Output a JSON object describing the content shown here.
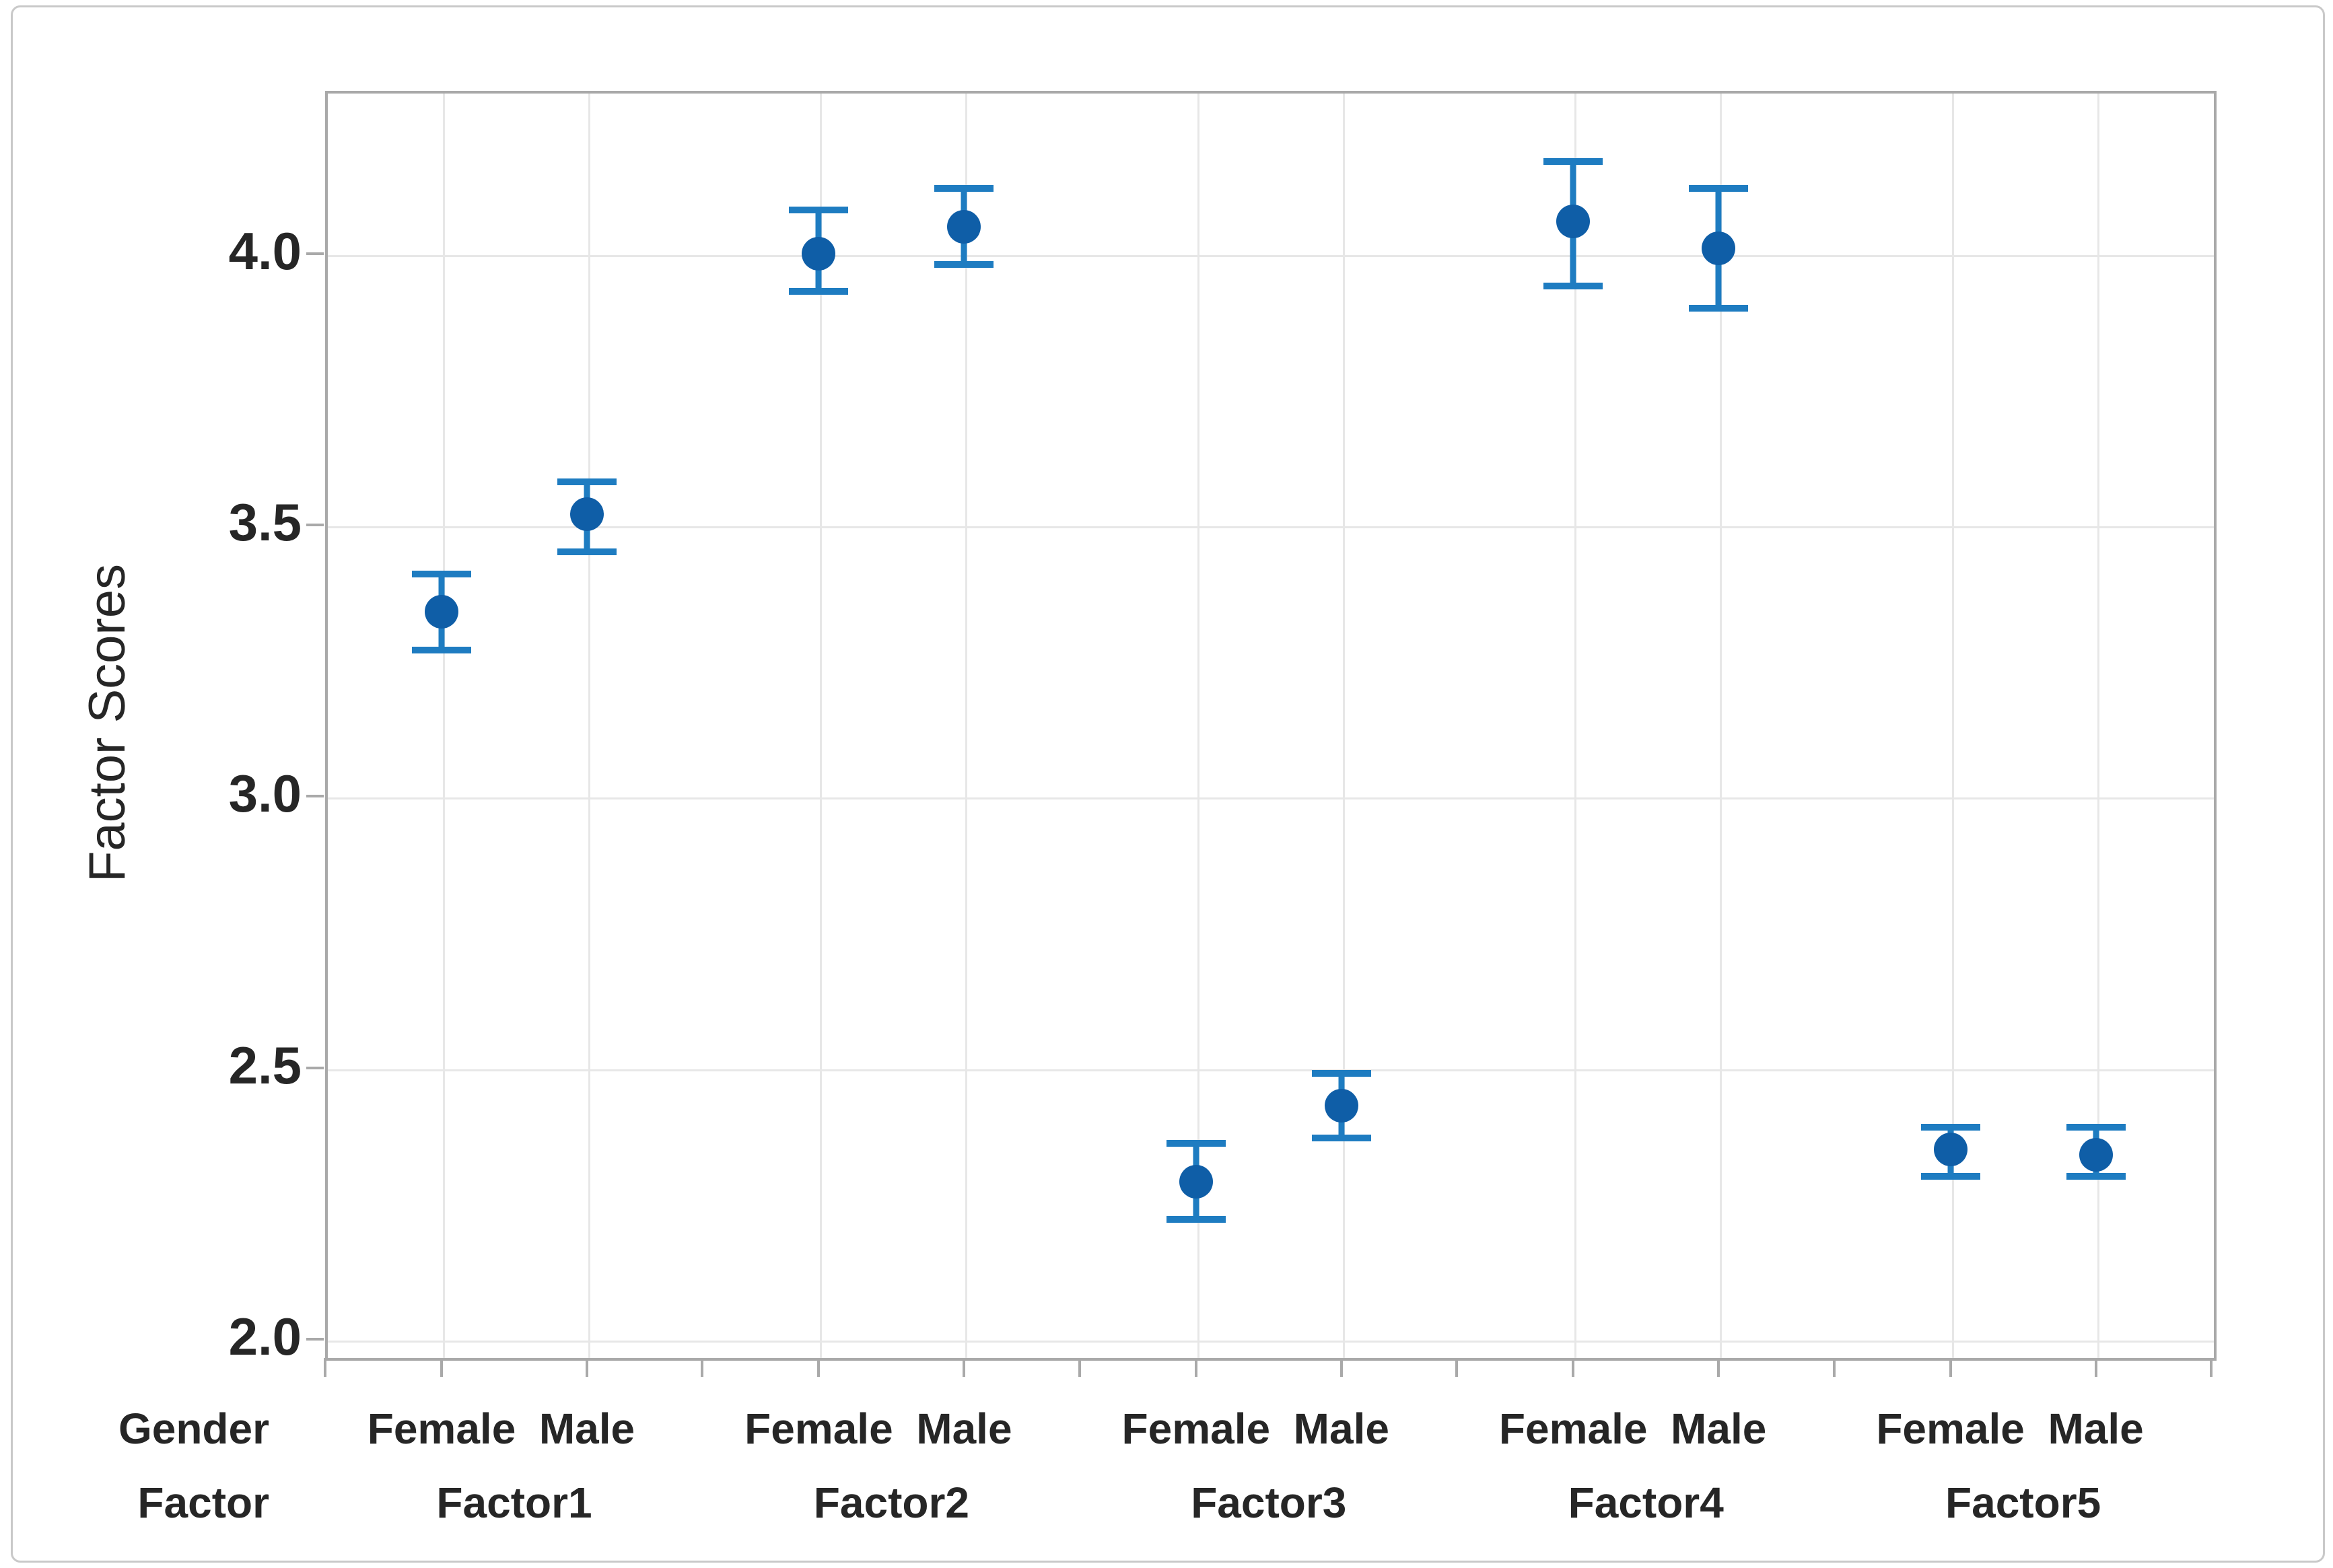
{
  "figure": {
    "background": "#ffffff",
    "border_color": "#c9c9c9"
  },
  "chart_data": {
    "type": "scatter",
    "subtype": "interval-plot-mean-with-95ci-error-bars",
    "title": "",
    "ylabel": "Factor Scores",
    "xlabel_rows": [
      "Gender",
      "Factor"
    ],
    "y_ticks": [
      "2.0",
      "2.5",
      "3.0",
      "3.5",
      "4.0"
    ],
    "ylim": [
      1.97,
      4.3
    ],
    "grid": "horizontal and vertical light gray gridlines",
    "legend": "none",
    "groups": [
      {
        "factor": "Factor1",
        "points": [
          {
            "gender": "Female",
            "mean": 3.34,
            "ci_low": 3.27,
            "ci_high": 3.41
          },
          {
            "gender": "Male",
            "mean": 3.52,
            "ci_low": 3.45,
            "ci_high": 3.58
          }
        ]
      },
      {
        "factor": "Factor2",
        "points": [
          {
            "gender": "Female",
            "mean": 4.0,
            "ci_low": 3.93,
            "ci_high": 4.08
          },
          {
            "gender": "Male",
            "mean": 4.05,
            "ci_low": 3.98,
            "ci_high": 4.12
          }
        ]
      },
      {
        "factor": "Factor3",
        "points": [
          {
            "gender": "Female",
            "mean": 2.29,
            "ci_low": 2.22,
            "ci_high": 2.36
          },
          {
            "gender": "Male",
            "mean": 2.43,
            "ci_low": 2.37,
            "ci_high": 2.49
          }
        ]
      },
      {
        "factor": "Factor4",
        "points": [
          {
            "gender": "Female",
            "mean": 4.06,
            "ci_low": 3.94,
            "ci_high": 4.17
          },
          {
            "gender": "Male",
            "mean": 4.01,
            "ci_low": 3.9,
            "ci_high": 4.12
          }
        ]
      },
      {
        "factor": "Factor5",
        "points": [
          {
            "gender": "Female",
            "mean": 2.35,
            "ci_low": 2.3,
            "ci_high": 2.39
          },
          {
            "gender": "Male",
            "mean": 2.34,
            "ci_low": 2.3,
            "ci_high": 2.39
          }
        ]
      }
    ],
    "colors": {
      "mean_dot": "#0f5ea7",
      "interval_bar": "#1e7cc1",
      "gridline": "#e7e7e7",
      "frame": "#a9a9a9",
      "text": "#262626"
    }
  }
}
